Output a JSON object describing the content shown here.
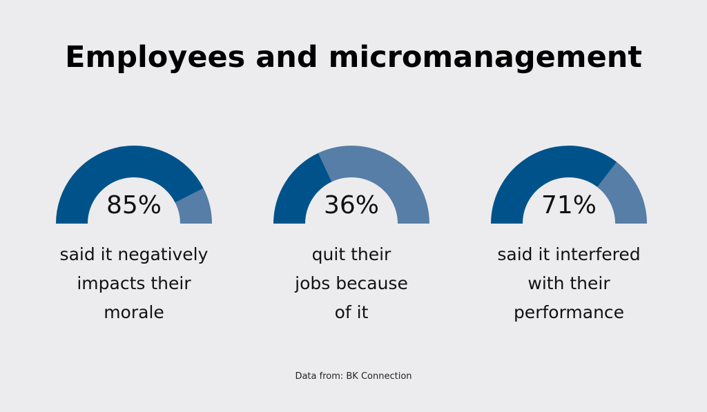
{
  "title": "Employees and micromanagement",
  "source": "Data from: BK Connection",
  "colors": {
    "filled": "#00538a",
    "remainder": "#567ea6",
    "background": "#ececee"
  },
  "chart_data": {
    "type": "gauge",
    "title": "Employees and micromanagement",
    "value_range": [
      0,
      100
    ],
    "unit": "%",
    "gauges": [
      {
        "value": 85,
        "label": "85%",
        "caption_lines": [
          "said it negatively",
          "impacts their",
          "morale"
        ]
      },
      {
        "value": 36,
        "label": "36%",
        "caption_lines": [
          "quit their",
          "jobs because",
          "of it"
        ]
      },
      {
        "value": 71,
        "label": "71%",
        "caption_lines": [
          "said it interfered",
          "with their",
          "performance"
        ]
      }
    ]
  }
}
